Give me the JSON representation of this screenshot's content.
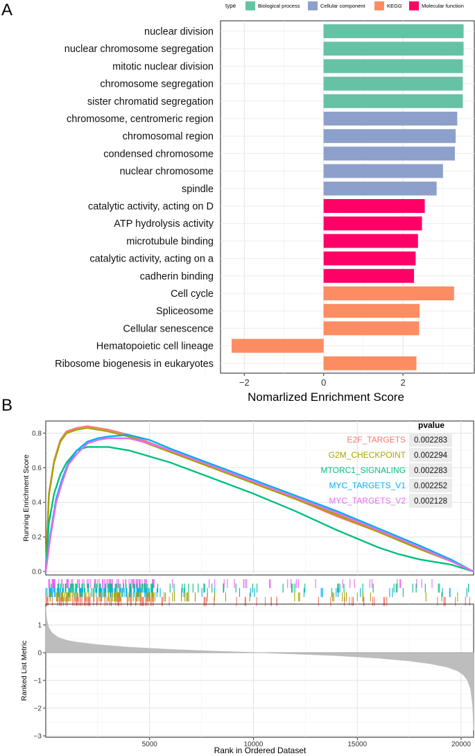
{
  "panel_labels": {
    "a": "A",
    "b": "B"
  },
  "legend": {
    "title": "type",
    "items": [
      {
        "label": "Biological process",
        "color": "#66c2a5"
      },
      {
        "label": "Cellular component",
        "color": "#8da0cb"
      },
      {
        "label": "KEGG",
        "color": "#fc8d62"
      },
      {
        "label": "Molecular function",
        "color": "#ff0066"
      }
    ]
  },
  "chart_data": [
    {
      "type": "bar",
      "orientation": "horizontal",
      "title": "",
      "xlabel": "Nomarlized Enrichment Score",
      "ylabel": "",
      "xlim": [
        -2.6,
        3.8
      ],
      "xticks": [
        -2,
        0,
        2
      ],
      "categories": [
        "nuclear division",
        "nuclear chromosome segregation",
        "mitotic nuclear division",
        "chromosome segregation",
        "sister chromatid segregation",
        "chromosome, centromeric region",
        "chromosomal region",
        "condensed chromosome",
        "nuclear chromosome",
        "spindle",
        "catalytic activity, acting on D",
        "ATP hydrolysis activity",
        "microtubule binding",
        "catalytic activity, acting on a",
        "cadherin binding",
        "Cell cycle",
        "Spliceosome",
        "Cellular senescence",
        "Hematopoietic cell lineage",
        "Ribosome biogenesis in eukaryotes"
      ],
      "values": [
        3.53,
        3.53,
        3.51,
        3.51,
        3.51,
        3.37,
        3.33,
        3.31,
        3.01,
        2.85,
        2.55,
        2.48,
        2.38,
        2.32,
        2.28,
        3.29,
        2.42,
        2.41,
        -2.32,
        2.34
      ],
      "types": [
        "Biological process",
        "Biological process",
        "Biological process",
        "Biological process",
        "Biological process",
        "Cellular component",
        "Cellular component",
        "Cellular component",
        "Cellular component",
        "Cellular component",
        "Molecular function",
        "Molecular function",
        "Molecular function",
        "Molecular function",
        "Molecular function",
        "KEGG",
        "KEGG",
        "KEGG",
        "KEGG",
        "KEGG"
      ]
    },
    {
      "type": "line",
      "title": "",
      "ylabel": "Running Enrichment Score",
      "ylim": [
        -0.02,
        0.87
      ],
      "yticks": [
        0.0,
        0.2,
        0.4,
        0.6,
        0.8
      ],
      "xlim": [
        0,
        20600
      ],
      "pvalue_header": "pvalue",
      "series": [
        {
          "name": "E2F_TARGETS",
          "color": "#f8766d",
          "pvalue": "0.002283",
          "x": [
            0,
            150,
            400,
            700,
            1000,
            1500,
            2000,
            3000,
            4000,
            6000,
            8000,
            10000,
            12000,
            14000,
            16000,
            18000,
            19500,
            20600
          ],
          "y": [
            0.0,
            0.45,
            0.64,
            0.76,
            0.81,
            0.83,
            0.84,
            0.82,
            0.79,
            0.7,
            0.61,
            0.51,
            0.42,
            0.32,
            0.23,
            0.13,
            0.06,
            0.0
          ]
        },
        {
          "name": "G2M_CHECKPOINT",
          "color": "#a3a500",
          "pvalue": "0.002294",
          "x": [
            0,
            150,
            400,
            700,
            1000,
            1500,
            2000,
            3000,
            4000,
            6000,
            8000,
            10000,
            12000,
            14000,
            16000,
            18000,
            19500,
            20600
          ],
          "y": [
            0.0,
            0.44,
            0.63,
            0.75,
            0.8,
            0.82,
            0.83,
            0.81,
            0.78,
            0.69,
            0.6,
            0.51,
            0.42,
            0.33,
            0.23,
            0.13,
            0.06,
            0.0
          ]
        },
        {
          "name": "MTORC1_SIGNALING",
          "color": "#00bf7d",
          "pvalue": "0.002283",
          "x": [
            0,
            150,
            400,
            700,
            1000,
            1500,
            2000,
            3000,
            4000,
            6000,
            8000,
            10000,
            12000,
            14000,
            16000,
            17000,
            18000,
            19500,
            20600
          ],
          "y": [
            0.0,
            0.28,
            0.45,
            0.56,
            0.63,
            0.7,
            0.72,
            0.72,
            0.7,
            0.63,
            0.54,
            0.45,
            0.35,
            0.24,
            0.14,
            0.1,
            0.07,
            0.04,
            0.0
          ]
        },
        {
          "name": "MYC_TARGETS_V1",
          "color": "#00b0f6",
          "pvalue": "0.002252",
          "x": [
            0,
            200,
            500,
            800,
            1100,
            1500,
            2000,
            2500,
            3000,
            4000,
            5000,
            6000,
            8000,
            10000,
            12000,
            14000,
            16000,
            18000,
            19500,
            20600
          ],
          "y": [
            0.0,
            0.2,
            0.42,
            0.54,
            0.63,
            0.7,
            0.75,
            0.77,
            0.78,
            0.79,
            0.76,
            0.71,
            0.62,
            0.53,
            0.44,
            0.35,
            0.25,
            0.15,
            0.07,
            0.0
          ]
        },
        {
          "name": "MYC_TARGETS_V2",
          "color": "#e76bf3",
          "pvalue": "0.002128",
          "x": [
            0,
            200,
            500,
            800,
            1100,
            1500,
            2000,
            2500,
            3000,
            4000,
            5000,
            6000,
            8000,
            10000,
            12000,
            14000,
            16000,
            18000,
            19500,
            20600
          ],
          "y": [
            0.0,
            0.18,
            0.4,
            0.52,
            0.62,
            0.68,
            0.74,
            0.76,
            0.77,
            0.77,
            0.74,
            0.7,
            0.61,
            0.52,
            0.43,
            0.34,
            0.24,
            0.14,
            0.06,
            0.0
          ]
        }
      ]
    },
    {
      "type": "area",
      "title": "",
      "xlabel": "Rank in Ordered Dataset",
      "ylabel": "Ranked List Metric",
      "xlim": [
        0,
        20600
      ],
      "ylim": [
        -3.05,
        1.75
      ],
      "xticks": [
        5000,
        10000,
        15000,
        20000
      ],
      "yticks": [
        -3,
        -2,
        -1,
        0,
        1
      ],
      "x": [
        0,
        50,
        150,
        300,
        600,
        1000,
        1500,
        2500,
        4000,
        6000,
        8000,
        10000,
        12000,
        14000,
        16000,
        17500,
        18500,
        19300,
        19800,
        20100,
        20300,
        20450,
        20550,
        20600
      ],
      "y": [
        1.65,
        1.2,
        0.9,
        0.72,
        0.55,
        0.45,
        0.38,
        0.29,
        0.2,
        0.12,
        0.06,
        0.01,
        -0.05,
        -0.11,
        -0.2,
        -0.3,
        -0.4,
        -0.52,
        -0.65,
        -0.8,
        -1.0,
        -1.3,
        -1.9,
        -2.8
      ]
    }
  ]
}
